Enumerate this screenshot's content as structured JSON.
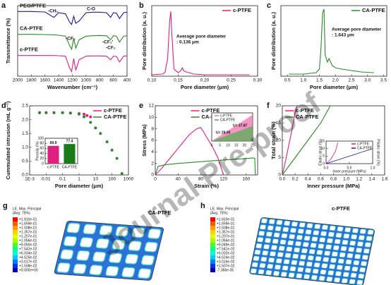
{
  "chart_data": [
    {
      "type": "line",
      "label": "a",
      "xlabel": "Wavenumber (cm⁻¹)",
      "ylabel": "Transmittance (%)",
      "xlim": [
        2000,
        400
      ],
      "ylim": [
        0,
        3
      ],
      "xticks": [
        2000,
        1800,
        1600,
        1400,
        1200,
        1000,
        800,
        600,
        400
      ],
      "legend": "inline",
      "x": [
        2000,
        1800,
        1600,
        1470,
        1400,
        1300,
        1240,
        1210,
        1180,
        1150,
        1100,
        1000,
        900,
        800,
        700,
        640,
        600,
        555,
        510,
        450,
        400
      ],
      "series": [
        {
          "name": "PEO/PTFE",
          "color": "#1c1c8f",
          "values": [
            2.75,
            2.75,
            2.73,
            2.5,
            2.7,
            2.65,
            2.3,
            2.2,
            2.55,
            2.25,
            2.35,
            2.7,
            2.72,
            2.72,
            2.7,
            2.5,
            2.7,
            2.68,
            2.45,
            2.7,
            2.72
          ]
        },
        {
          "name": "CA-PTFE",
          "color": "#2a8a2a",
          "values": [
            1.78,
            1.78,
            1.77,
            1.76,
            1.74,
            1.7,
            1.3,
            1.15,
            1.6,
            1.2,
            1.55,
            1.7,
            1.72,
            1.73,
            1.72,
            1.55,
            1.72,
            1.7,
            1.45,
            1.7,
            1.72
          ]
        },
        {
          "name": "c-PTFE",
          "color": "#e0207f",
          "values": [
            0.88,
            0.88,
            0.88,
            0.88,
            0.87,
            0.85,
            0.35,
            0.2,
            0.75,
            0.25,
            0.7,
            0.85,
            0.86,
            0.86,
            0.85,
            0.7,
            0.85,
            0.84,
            0.6,
            0.85,
            0.86
          ]
        }
      ],
      "annotations": [
        "-CH₂",
        "C-O",
        "-CF₂",
        "-CF₂'",
        "-CF₂"
      ]
    },
    {
      "type": "line",
      "label": "b",
      "xlabel": "Pore diameter (μm)",
      "ylabel": "Pore distribution (a. u.)",
      "xlim": [
        0.1,
        0.3
      ],
      "ylim": [
        0,
        1
      ],
      "legend": "upper right",
      "xticks": [
        {
          "value": 0.1,
          "label": "0.10"
        },
        0.15,
        {
          "value": 0.2,
          "label": "0.20"
        },
        0.25,
        {
          "value": 0.3,
          "label": "0.30"
        }
      ],
      "series": [
        {
          "name": "c-PTFE",
          "color": "#e0207f",
          "x": [
            0.1,
            0.12,
            0.125,
            0.13,
            0.134,
            0.136,
            0.138,
            0.142,
            0.15,
            0.155,
            0.158,
            0.16,
            0.165,
            0.17,
            0.18,
            0.2,
            0.25,
            0.285
          ],
          "values": [
            0.02,
            0.03,
            0.05,
            0.25,
            0.8,
            0.92,
            0.6,
            0.1,
            0.05,
            0.08,
            0.12,
            0.08,
            0.06,
            0.05,
            0.03,
            0.02,
            0.02,
            0.02
          ]
        }
      ],
      "annotations": [
        "Average pore diameter",
        ": 0.136 μm"
      ]
    },
    {
      "type": "line",
      "label": "c",
      "xlabel": "Pore diameter (μm)",
      "ylabel": "Pore distribution (a. u.)",
      "xlim": [
        0.3,
        3.6
      ],
      "ylim": [
        0,
        1
      ],
      "legend": "upper right",
      "xticks": [
        0.5,
        {
          "value": 1,
          "label": "1.0"
        },
        1.5,
        {
          "value": 2,
          "label": "2.0"
        },
        2.5,
        {
          "value": 3,
          "label": "3.0"
        },
        3.5
      ],
      "series": [
        {
          "name": "CA-PTFE",
          "color": "#2a8a2a",
          "x": [
            0.55,
            0.8,
            1.0,
            1.2,
            1.4,
            1.5,
            1.55,
            1.6,
            1.643,
            1.68,
            1.75,
            1.8,
            1.9,
            2.0,
            2.2,
            2.5,
            2.8,
            3.2
          ],
          "values": [
            0.03,
            0.03,
            0.03,
            0.04,
            0.05,
            0.1,
            0.4,
            0.9,
            0.95,
            0.3,
            0.2,
            0.25,
            0.15,
            0.12,
            0.1,
            0.08,
            0.06,
            0.05
          ]
        }
      ],
      "annotations": [
        "Average pore diameter",
        ": 1.643 μm"
      ]
    },
    {
      "type": "line",
      "label": "d",
      "xlabel": "Pore diameter (μm)",
      "ylabel": "Cummulated intrusion (mL g⁻¹)",
      "xscale": "log",
      "xlim": [
        0.001,
        1000
      ],
      "ylim": [
        0,
        2.5
      ],
      "legend": "upper right",
      "xticks": [
        {
          "value": 0.001,
          "label": "1E-3"
        },
        0.01,
        0.1,
        1,
        10,
        100,
        1000
      ],
      "yticks": [
        {
          "value": 0,
          "label": "0.0"
        },
        0.5,
        {
          "value": 1,
          "label": "1.0"
        },
        1.5,
        {
          "value": 2,
          "label": "2.0"
        },
        2.5
      ],
      "series": [
        {
          "name": "c-PTFE",
          "color": "#e0207f",
          "marker": "circle",
          "x": [
            0.004,
            0.01,
            0.03,
            0.1,
            0.3,
            1,
            2,
            3,
            5
          ],
          "values": [
            2.25,
            2.25,
            2.25,
            2.25,
            2.24,
            2.22,
            2.2,
            2.15,
            2.1
          ]
        },
        {
          "name": "CA-PTFE",
          "color": "#2a8a2a",
          "marker": "circle",
          "x": [
            0.004,
            0.01,
            0.03,
            0.1,
            0.3,
            1,
            2,
            5,
            10,
            20,
            50,
            100,
            200,
            400
          ],
          "values": [
            2.25,
            2.25,
            2.25,
            2.25,
            2.24,
            2.2,
            2.1,
            1.9,
            1.7,
            1.5,
            1.2,
            0.9,
            0.6,
            0.05
          ]
        }
      ]
    },
    {
      "type": "bar",
      "ylabel": "Porosity (%)",
      "categories": [
        "c-PTFE",
        "CA-PTFE"
      ],
      "values": [
        69.9,
        77.4
      ],
      "colors": [
        "#e0207f",
        "#1a7a1a"
      ],
      "ylim": [
        0,
        100
      ],
      "yticks": [
        0,
        20,
        40,
        60,
        80,
        100
      ]
    },
    {
      "type": "line",
      "label": "e",
      "xlabel": "Strain (%)",
      "ylabel": "Stress (MPa)",
      "xlim": [
        0,
        180
      ],
      "ylim": [
        0,
        12
      ],
      "xticks": [
        0,
        40,
        80,
        120,
        160
      ],
      "yticks": [
        0,
        2,
        4,
        6,
        8,
        10,
        12
      ],
      "legend": "upper center",
      "series": [
        {
          "name": "c-PTFE",
          "color": "#e0207f",
          "x": [
            0,
            10,
            20,
            30,
            40,
            50,
            60,
            70,
            75,
            80,
            85,
            90,
            100,
            110,
            115,
            120
          ],
          "values": [
            0,
            1,
            2.2,
            3.4,
            4.6,
            5.8,
            7,
            7.8,
            8.1,
            8.2,
            7.5,
            6.6,
            5,
            3,
            1.5,
            0
          ]
        },
        {
          "name": "CA-PTFE",
          "color": "#2a8a2a",
          "x": [
            0,
            5,
            20,
            40,
            80,
            120,
            160,
            172,
            175,
            176
          ],
          "values": [
            0,
            1.5,
            1.8,
            2,
            2.3,
            2.6,
            2.85,
            2.95,
            2.9,
            0
          ]
        }
      ]
    },
    {
      "type": "area",
      "xlim": [
        0,
        25
      ],
      "ylim": [
        0,
        3
      ],
      "xticks": [
        0,
        5,
        10,
        15,
        20,
        25
      ],
      "legend": "upper left",
      "series": [
        {
          "name": "c-PTFE",
          "color": "#f06aa8",
          "x": [
            0,
            25
          ],
          "values": [
            0,
            2.8
          ]
        },
        {
          "name": "CA-PTFE",
          "color": "#4caf50",
          "x": [
            0,
            25
          ],
          "values": [
            0,
            1.6
          ]
        }
      ],
      "annotations": [
        "U= 28.93",
        "U= 37.87"
      ]
    },
    {
      "type": "line",
      "label": "f",
      "xlabel": "Inner pressure (MPa)",
      "ylabel": "Total strain (%)",
      "xlim": [
        0,
        1.6
      ],
      "ylim": [
        0,
        20
      ],
      "legend": "upper left",
      "xticks": [
        {
          "value": 0,
          "label": "0.0"
        },
        0.2,
        0.4,
        0.6,
        0.8,
        {
          "value": 1,
          "label": "1.0"
        },
        1.2,
        1.4,
        1.6
      ],
      "yticks": [
        0,
        5,
        10,
        15,
        20
      ],
      "series": [
        {
          "name": "c-PTFE",
          "color": "#e0207f",
          "x": [
            0,
            0.05,
            0.1,
            0.15,
            0.2,
            0.23
          ],
          "values": [
            0,
            4,
            8.5,
            13,
            18,
            20
          ]
        },
        {
          "name": "CA-PTFE",
          "color": "#2a8a2a",
          "x": [
            0,
            0.1,
            0.2,
            0.4,
            0.6,
            0.75
          ],
          "values": [
            0,
            2.5,
            5,
            10,
            15,
            20
          ]
        }
      ]
    },
    {
      "type": "line",
      "xlabel": "Inner pressure (MPa)",
      "ylabel": "Elastic strain (%)",
      "y2label": "Plastic strain (%)",
      "xlim": [
        0,
        1
      ],
      "ylim": [
        0,
        15
      ],
      "xticks": [
        {
          "value": 0,
          "label": "0.0"
        },
        0.5,
        {
          "value": 1,
          "label": "1.0"
        }
      ],
      "yticks": [
        0,
        5,
        10,
        15
      ],
      "legend": "upper right",
      "series": [
        {
          "name": "c-PTFE",
          "color": "#e0207f",
          "x": [
            0,
            0.1,
            0.2,
            0.25
          ],
          "values": [
            0,
            3,
            8,
            14
          ]
        },
        {
          "name": "CA-PTFE",
          "color": "#1c1c8f",
          "x": [
            0,
            0.3,
            0.6,
            1
          ],
          "values": [
            0,
            3,
            6,
            10
          ]
        }
      ]
    }
  ],
  "fem_panels": [
    {
      "label": "g",
      "title": "CA-PTFE",
      "legend_title": [
        "LE, Max. Principal",
        "(Avg: 75%)"
      ],
      "legend_values": [
        "+1.810e-01",
        "+1.659e-01",
        "+1.508e-01",
        "+1.357e-01",
        "+1.207e-01",
        "+1.056e-01",
        "+9.050e-02",
        "+7.542e-02",
        "+6.034e-02",
        "+4.525e-02",
        "+3.017e-02",
        "+1.508e-02",
        "+0.000e+00"
      ]
    },
    {
      "label": "h",
      "title": "c-PTFE",
      "legend_title": [
        "LE, Max. Principal",
        "(Avg: 75%)"
      ],
      "legend_values": [
        "+1.810e-01",
        "+1.659e-01",
        "+1.508e-01",
        "+1.357e-01",
        "+1.207e-01",
        "+1.056e-01",
        "+9.049e-02",
        "+7.541e-02",
        "+6.032e-02",
        "+4.524e-02",
        "+3.016e-02",
        "+1.507e-02",
        "-7.366e-05"
      ]
    }
  ],
  "watermark": "Journal Pre-proof"
}
